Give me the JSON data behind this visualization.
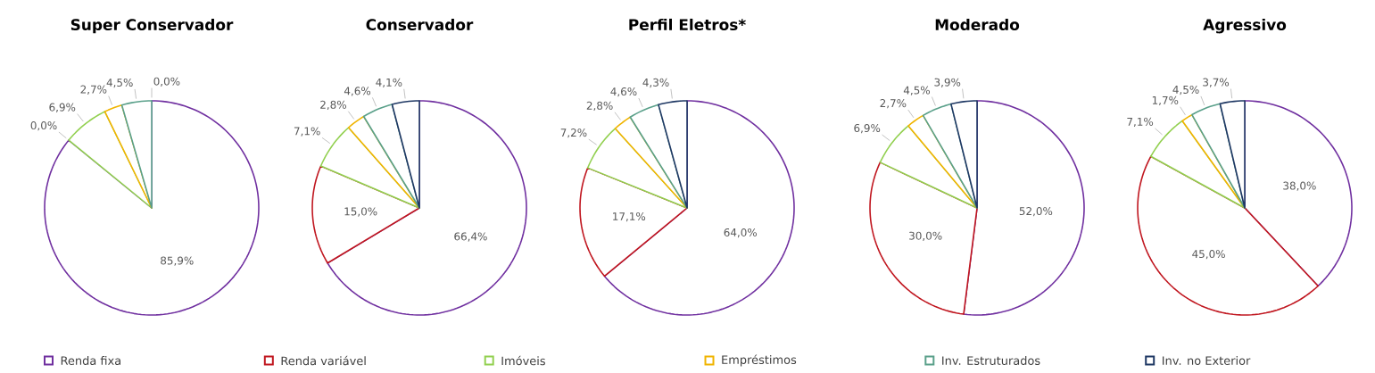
{
  "chart_data": [
    {
      "type": "pie",
      "title": "Super Conservador",
      "categories": [
        "Renda fixa",
        "Renda variável",
        "Imóveis",
        "Empréstimos",
        "Inv. Estruturados",
        "Inv. no Exterior"
      ],
      "values": [
        85.9,
        0.0,
        6.9,
        2.7,
        4.5,
        0.0
      ],
      "value_labels": [
        "85,9%",
        "0,0%",
        "6,9%",
        "2,7%",
        "4,5%",
        "0,0%"
      ],
      "colors": [
        "#7030a0",
        "#c0161f",
        "#92d050",
        "#f0b400",
        "#5aa08a",
        "#1f3864"
      ],
      "legend": "bottom"
    },
    {
      "type": "pie",
      "title": "Conservador",
      "categories": [
        null,
        null,
        null,
        null,
        null,
        null
      ],
      "values": [
        66.4,
        15.0,
        7.1,
        2.8,
        4.6,
        4.1
      ],
      "value_labels": [
        "66,4%",
        "15,0%",
        "7,1%",
        "2,8%",
        "4,6%",
        "4,1%"
      ],
      "colors": [
        "#7030a0",
        "#c0161f",
        "#92d050",
        "#f0b400",
        "#5aa08a",
        "#1f3864"
      ]
    },
    {
      "type": "pie",
      "title": "Perfil Eletros*",
      "categories": [
        null,
        null,
        null,
        null,
        null,
        null
      ],
      "values": [
        64.0,
        17.1,
        7.2,
        2.8,
        4.6,
        4.3
      ],
      "value_labels": [
        "64,0%",
        "17,1%",
        "7,2%",
        "2,8%",
        "4,6%",
        "4,3%"
      ],
      "colors": [
        "#7030a0",
        "#c0161f",
        "#92d050",
        "#f0b400",
        "#5aa08a",
        "#1f3864"
      ]
    },
    {
      "type": "pie",
      "title": "Moderado",
      "categories": [
        null,
        null,
        null,
        null,
        null,
        null
      ],
      "values": [
        52.0,
        30.0,
        6.9,
        2.7,
        4.5,
        3.9
      ],
      "value_labels": [
        "52,0%",
        "30,0%",
        "6,9%",
        "2,7%",
        "4,5%",
        "3,9%"
      ],
      "colors": [
        "#7030a0",
        "#c0161f",
        "#92d050",
        "#f0b400",
        "#5aa08a",
        "#1f3864"
      ]
    },
    {
      "type": "pie",
      "title": "Agressivo",
      "categories": [
        null,
        null,
        null,
        null,
        null,
        null
      ],
      "values": [
        38.0,
        45.0,
        7.1,
        1.7,
        4.5,
        3.7
      ],
      "value_labels": [
        "38,0%",
        "45,0%",
        "7,1%",
        "1,7%",
        "4,5%",
        "3,7%"
      ],
      "colors": [
        "#7030a0",
        "#c0161f",
        "#92d050",
        "#f0b400",
        "#5aa08a",
        "#1f3864"
      ]
    }
  ]
}
